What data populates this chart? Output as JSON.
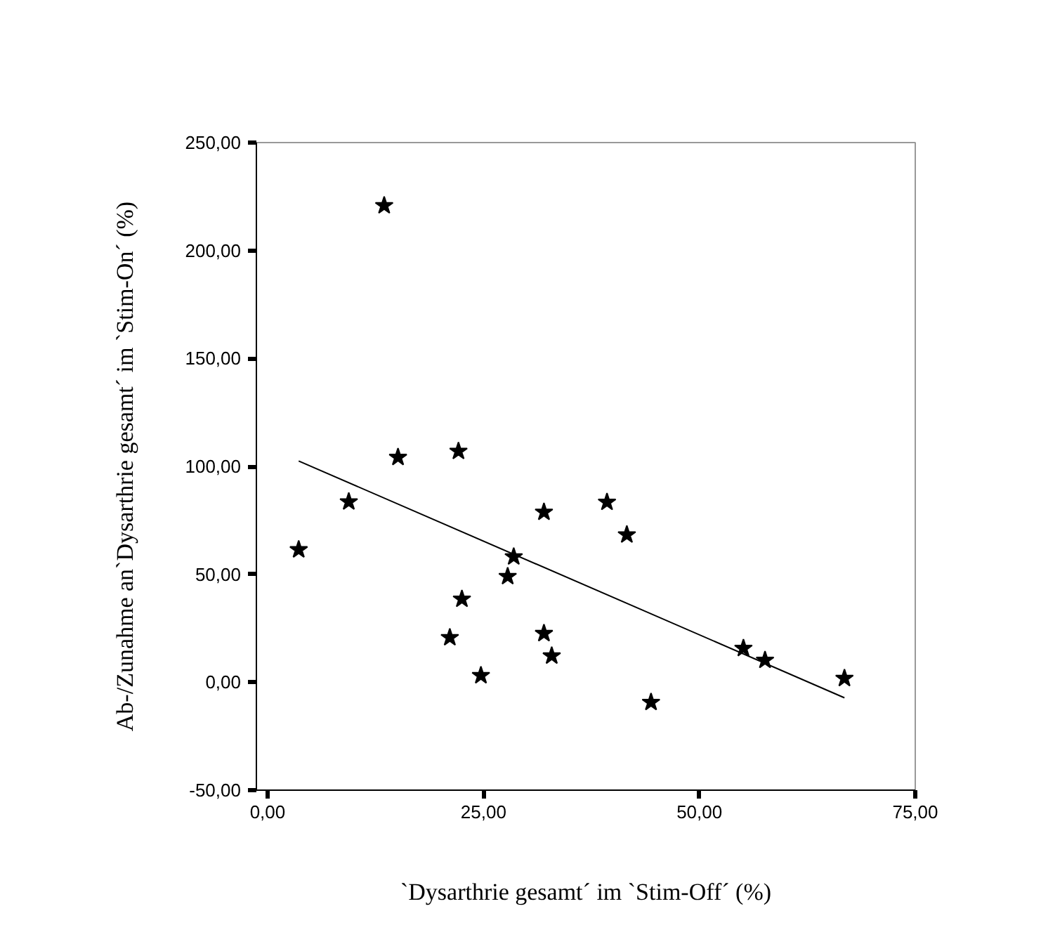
{
  "chart_data": {
    "type": "scatter",
    "xlabel": "`Dysarthrie gesamt´ im `Stim-Off´ (%)",
    "ylabel": "Ab-/Zunahme an`Dysarthrie gesamt´ im `Stim-On´ (%)",
    "xlim": [
      -1.3,
      75
    ],
    "ylim": [
      -50,
      250
    ],
    "xticks": [
      {
        "value": 0,
        "label": "0,00"
      },
      {
        "value": 25,
        "label": "25,00"
      },
      {
        "value": 50,
        "label": "50,00"
      },
      {
        "value": 75,
        "label": "75,00"
      }
    ],
    "yticks": [
      {
        "value": -50,
        "label": "-50,00"
      },
      {
        "value": 0,
        "label": "0,00"
      },
      {
        "value": 50,
        "label": "50,00"
      },
      {
        "value": 100,
        "label": "100,00"
      },
      {
        "value": 150,
        "label": "150,00"
      },
      {
        "value": 200,
        "label": "200,00"
      },
      {
        "value": 250,
        "label": "250,00"
      }
    ],
    "grid": false,
    "series": [
      {
        "marker": "star",
        "color": "#000000",
        "x": [
          13.5,
          15.1,
          22.1,
          32.0,
          39.3,
          41.6,
          28.5,
          27.8,
          22.5,
          21.1,
          32.0,
          32.9,
          24.7,
          44.4,
          55.1,
          57.6,
          66.8,
          3.6,
          9.4
        ],
        "values": [
          220.8,
          104.2,
          107,
          78.8,
          83.4,
          68.3,
          58.1,
          49.0,
          38.5,
          20.7,
          22.6,
          12.2,
          3.1,
          -9.3,
          15.7,
          10.2,
          1.8,
          61.4,
          83.6
        ]
      },
      {
        "type": "line",
        "color": "#000000",
        "x": [
          3.6,
          66.8
        ],
        "values": [
          102.5,
          -7.2
        ],
        "line_style": "solid"
      }
    ]
  }
}
